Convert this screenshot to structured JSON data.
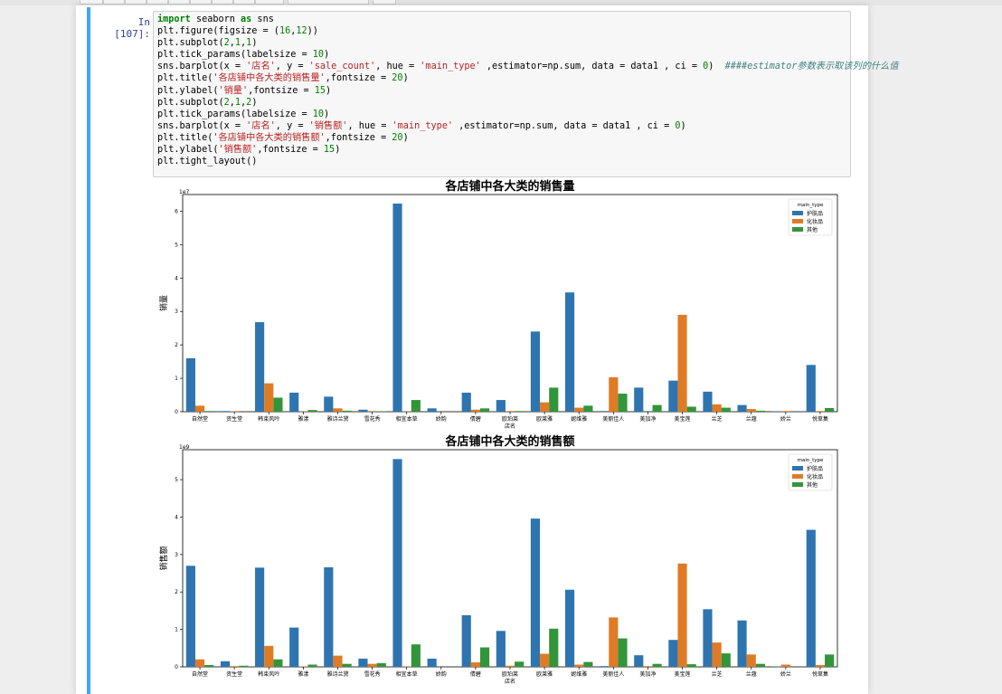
{
  "cell": {
    "prompt": "In  [107]:",
    "code_lines": [
      [
        [
          "kw",
          "import"
        ],
        [
          "t",
          " seaborn "
        ],
        [
          "kw",
          "as"
        ],
        [
          "t",
          " sns"
        ]
      ],
      [
        [
          "t",
          "plt.figure(figsize = ("
        ],
        [
          "num",
          "16"
        ],
        [
          "t",
          ","
        ],
        [
          "num",
          "12"
        ],
        [
          "t",
          "))"
        ]
      ],
      [
        [
          "t",
          "plt.subplot("
        ],
        [
          "num",
          "2"
        ],
        [
          "t",
          ","
        ],
        [
          "num",
          "1"
        ],
        [
          "t",
          ","
        ],
        [
          "num",
          "1"
        ],
        [
          "t",
          ")"
        ]
      ],
      [
        [
          "t",
          "plt.tick_params(labelsize = "
        ],
        [
          "num",
          "10"
        ],
        [
          "t",
          ")"
        ]
      ],
      [
        [
          "t",
          "sns.barplot(x = "
        ],
        [
          "str",
          "'店名'"
        ],
        [
          "t",
          ", y = "
        ],
        [
          "str",
          "'sale_count'"
        ],
        [
          "t",
          ", hue = "
        ],
        [
          "str",
          "'main_type'"
        ],
        [
          "t",
          " ,estimator=np.sum, data = data1 , ci = "
        ],
        [
          "num",
          "0"
        ],
        [
          "t",
          ")  "
        ],
        [
          "cm",
          "####estimator参数表示取该列的什么值"
        ]
      ],
      [
        [
          "t",
          "plt.title("
        ],
        [
          "str",
          "'各店铺中各大类的销售量'"
        ],
        [
          "t",
          ",fontsize = "
        ],
        [
          "num",
          "20"
        ],
        [
          "t",
          ")"
        ]
      ],
      [
        [
          "t",
          "plt.ylabel("
        ],
        [
          "str",
          "'销量'"
        ],
        [
          "t",
          ",fontsize = "
        ],
        [
          "num",
          "15"
        ],
        [
          "t",
          ")"
        ]
      ],
      [
        [
          "t",
          "plt.subplot("
        ],
        [
          "num",
          "2"
        ],
        [
          "t",
          ","
        ],
        [
          "num",
          "1"
        ],
        [
          "t",
          ","
        ],
        [
          "num",
          "2"
        ],
        [
          "t",
          ")"
        ]
      ],
      [
        [
          "t",
          "plt.tick_params(labelsize = "
        ],
        [
          "num",
          "10"
        ],
        [
          "t",
          ")"
        ]
      ],
      [
        [
          "t",
          "sns.barplot(x = "
        ],
        [
          "str",
          "'店名'"
        ],
        [
          "t",
          ", y = "
        ],
        [
          "str",
          "'销售额'"
        ],
        [
          "t",
          ", hue = "
        ],
        [
          "str",
          "'main_type'"
        ],
        [
          "t",
          " ,estimator=np.sum, data = data1 , ci = "
        ],
        [
          "num",
          "0"
        ],
        [
          "t",
          ")"
        ]
      ],
      [
        [
          "t",
          "plt.title("
        ],
        [
          "str",
          "'各店铺中各大类的销售额'"
        ],
        [
          "t",
          ",fontsize = "
        ],
        [
          "num",
          "20"
        ],
        [
          "t",
          ")"
        ]
      ],
      [
        [
          "t",
          "plt.ylabel("
        ],
        [
          "str",
          "'销售额'"
        ],
        [
          "t",
          ",fontsize = "
        ],
        [
          "num",
          "15"
        ],
        [
          "t",
          ")"
        ]
      ],
      [
        [
          "t",
          "plt.tight_layout()"
        ]
      ]
    ]
  },
  "colors": {
    "series": [
      "#2e75b0",
      "#e07b25",
      "#33953a"
    ]
  },
  "chart_data": [
    {
      "type": "bar",
      "title": "各店铺中各大类的销售量",
      "xlabel": "店名",
      "ylabel": "销量",
      "scale_label": "1e7",
      "ylim": [
        0,
        6.5
      ],
      "yticks": [
        0,
        1,
        2,
        3,
        4,
        5,
        6
      ],
      "legend_title": "main_type",
      "legend_position": "top-right",
      "categories": [
        "自然堂",
        "资生堂",
        "韩束风吟",
        "雅漾",
        "雅诗兰黛",
        "雪花秀",
        "相宜本草",
        "娇韵",
        "倩碧",
        "欧珀莱",
        "欧莱雅",
        "妮维雅",
        "美丽佳人",
        "美加净",
        "美宝莲",
        "兰芝",
        "兰蔻",
        "娇兰",
        "悦草集"
      ],
      "series": [
        {
          "name": "护肤品",
          "values": [
            1.6,
            0.02,
            2.68,
            0.57,
            0.45,
            0.06,
            6.23,
            0.1,
            0.57,
            0.35,
            2.4,
            3.57,
            0.02,
            0.72,
            0.93,
            0.6,
            0.2,
            0.01,
            1.4
          ]
        },
        {
          "name": "化妆品",
          "values": [
            0.18,
            0.01,
            0.85,
            0.01,
            0.1,
            0.02,
            0.01,
            0.0,
            0.06,
            0.02,
            0.28,
            0.12,
            1.03,
            0.0,
            2.9,
            0.22,
            0.08,
            0.02,
            0.02
          ]
        },
        {
          "name": "其他",
          "values": [
            0.02,
            0.0,
            0.42,
            0.05,
            0.03,
            0.01,
            0.35,
            0.0,
            0.1,
            0.02,
            0.72,
            0.18,
            0.54,
            0.2,
            0.15,
            0.12,
            0.03,
            0.0,
            0.11
          ]
        }
      ]
    },
    {
      "type": "bar",
      "title": "各店铺中各大类的销售额",
      "xlabel": "店名",
      "ylabel": "销售额",
      "scale_label": "1e9",
      "ylim": [
        0,
        5.8
      ],
      "yticks": [
        0,
        1,
        2,
        3,
        4,
        5
      ],
      "legend_title": "main_type",
      "legend_position": "top-right",
      "categories": [
        "自然堂",
        "资生堂",
        "韩束风吟",
        "雅漾",
        "雅诗兰黛",
        "雪花秀",
        "相宜本草",
        "娇韵",
        "倩碧",
        "欧珀莱",
        "欧莱雅",
        "妮维雅",
        "美丽佳人",
        "美加净",
        "美宝莲",
        "兰芝",
        "兰蔻",
        "娇兰",
        "悦草集"
      ],
      "series": [
        {
          "name": "护肤品",
          "values": [
            2.7,
            0.15,
            2.65,
            1.05,
            2.66,
            0.22,
            5.55,
            0.22,
            1.38,
            0.96,
            3.96,
            2.06,
            0.02,
            0.31,
            0.72,
            1.54,
            1.24,
            0.01,
            3.66
          ]
        },
        {
          "name": "化妆品",
          "values": [
            0.2,
            0.02,
            0.56,
            0.01,
            0.3,
            0.08,
            0.01,
            0.0,
            0.12,
            0.03,
            0.35,
            0.06,
            1.32,
            0.02,
            2.76,
            0.65,
            0.33,
            0.06,
            0.05
          ]
        },
        {
          "name": "其他",
          "values": [
            0.05,
            0.03,
            0.2,
            0.06,
            0.08,
            0.1,
            0.6,
            0.0,
            0.52,
            0.14,
            1.02,
            0.13,
            0.76,
            0.08,
            0.07,
            0.36,
            0.08,
            0.0,
            0.33
          ]
        }
      ]
    }
  ]
}
